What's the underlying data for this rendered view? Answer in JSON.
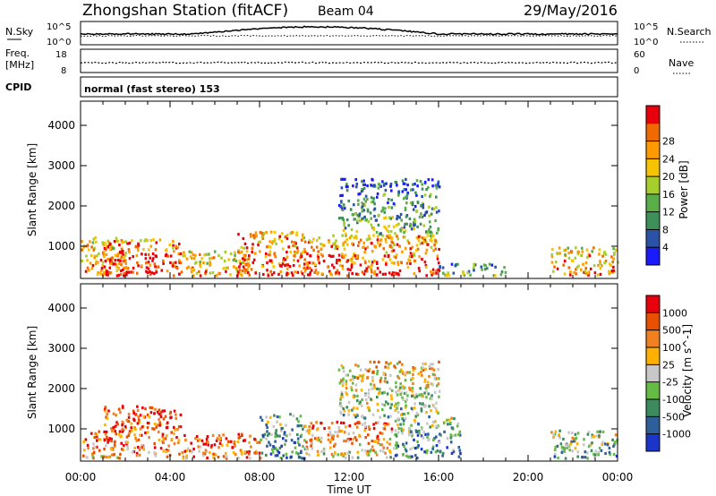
{
  "header": {
    "station_title": "Zhongshan Station (fitACF)",
    "beam_label": "Beam 04",
    "date": "29/May/2016"
  },
  "panel_labels": {
    "nsky": "N.Sky",
    "freq_top": "Freq.",
    "freq_unit": "[MHz]",
    "cpid": "CPID",
    "nsearch": "N.Search",
    "nave": "Nave",
    "mode_text": "normal (fast stereo) 153"
  },
  "small_axes": {
    "noise_top": "10^5",
    "noise_bottom": "10^0",
    "freq_top": "18",
    "freq_bottom": "8",
    "nave_top": "60",
    "nave_bottom": "0"
  },
  "x_axis": {
    "label": "Time UT",
    "ticks": [
      "00:00",
      "04:00",
      "08:00",
      "12:00",
      "16:00",
      "20:00",
      "00:00"
    ]
  },
  "y_axis": {
    "label": "Slant Range [km]",
    "ticks": [
      "1000",
      "2000",
      "3000",
      "4000"
    ],
    "range": [
      200,
      4600
    ]
  },
  "power_colorbar": {
    "label": "Power [dB]",
    "ticks": [
      "4",
      "8",
      "12",
      "16",
      "20",
      "24",
      "28"
    ],
    "colors": [
      "#1a1aff",
      "#2a53a8",
      "#3f8f5a",
      "#5aae48",
      "#a6cf2b",
      "#f5c300",
      "#ff9a00",
      "#f06a00",
      "#e8000c"
    ]
  },
  "velocity_colorbar": {
    "label": "Velocity [m s^-1]",
    "ticks": [
      "1000",
      "500",
      "100",
      "25",
      "-25",
      "-100",
      "-500",
      "-1000"
    ],
    "colors": [
      "#1a36c8",
      "#2f5f9a",
      "#3d8a5e",
      "#66bb44",
      "#c8c8c8",
      "#ffb000",
      "#f08020",
      "#e85000",
      "#e8000c"
    ]
  },
  "chart_data": [
    {
      "type": "heatmap",
      "panel": "power",
      "x_range_hours": [
        0,
        24
      ],
      "y_range_km": [
        200,
        4600
      ],
      "scatter_regions": [
        {
          "t0": 0.0,
          "t1": 2.0,
          "r0": 300,
          "r1": 1250,
          "level": 0.7
        },
        {
          "t0": 1.0,
          "t1": 4.5,
          "r0": 300,
          "r1": 1200,
          "level": 0.85
        },
        {
          "t0": 4.5,
          "t1": 7.5,
          "r0": 300,
          "r1": 900,
          "level": 0.65
        },
        {
          "t0": 7.0,
          "t1": 10.0,
          "r0": 300,
          "r1": 1400,
          "level": 0.8
        },
        {
          "t0": 9.5,
          "t1": 16.0,
          "r0": 300,
          "r1": 1300,
          "level": 0.8
        },
        {
          "t0": 11.5,
          "t1": 16.0,
          "r0": 1300,
          "r1": 2700,
          "level": 0.3
        },
        {
          "t0": 16.0,
          "t1": 19.0,
          "r0": 300,
          "r1": 600,
          "level": 0.35
        },
        {
          "t0": 21.0,
          "t1": 24.0,
          "r0": 300,
          "r1": 1000,
          "level": 0.7
        }
      ]
    },
    {
      "type": "heatmap",
      "panel": "velocity",
      "x_range_hours": [
        0,
        24
      ],
      "y_range_km": [
        200,
        4600
      ],
      "scatter_regions": [
        {
          "t0": 0.0,
          "t1": 1.5,
          "r0": 300,
          "r1": 1000,
          "level": 0.25
        },
        {
          "t0": 1.0,
          "t1": 4.5,
          "r0": 300,
          "r1": 1600,
          "level": 0.2
        },
        {
          "t0": 4.5,
          "t1": 8.0,
          "r0": 300,
          "r1": 900,
          "level": 0.2
        },
        {
          "t0": 8.0,
          "t1": 10.0,
          "r0": 300,
          "r1": 1400,
          "level": 0.75
        },
        {
          "t0": 10.0,
          "t1": 14.0,
          "r0": 300,
          "r1": 1200,
          "level": 0.35
        },
        {
          "t0": 11.5,
          "t1": 16.0,
          "r0": 1300,
          "r1": 2700,
          "level": 0.5
        },
        {
          "t0": 14.0,
          "t1": 17.0,
          "r0": 300,
          "r1": 1300,
          "level": 0.7
        },
        {
          "t0": 21.0,
          "t1": 24.0,
          "r0": 300,
          "r1": 1000,
          "level": 0.6
        }
      ]
    }
  ]
}
